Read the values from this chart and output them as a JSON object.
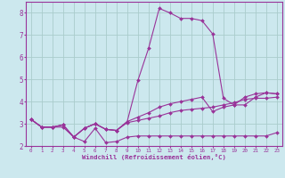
{
  "xlabel": "Windchill (Refroidissement éolien,°C)",
  "bg_color": "#cce8ee",
  "grid_color": "#aacccc",
  "line_color": "#993399",
  "xlim": [
    -0.5,
    23.5
  ],
  "ylim": [
    2.0,
    8.5
  ],
  "xticks": [
    0,
    1,
    2,
    3,
    4,
    5,
    6,
    7,
    8,
    9,
    10,
    11,
    12,
    13,
    14,
    15,
    16,
    17,
    18,
    19,
    20,
    21,
    22,
    23
  ],
  "yticks": [
    2,
    3,
    4,
    5,
    6,
    7,
    8
  ],
  "lines": [
    {
      "x": [
        0,
        1,
        2,
        3,
        4,
        5,
        6,
        7,
        8,
        9,
        10,
        11,
        12,
        13,
        14,
        15,
        16,
        17,
        18,
        19,
        20,
        21,
        22,
        23
      ],
      "y": [
        3.2,
        2.85,
        2.85,
        2.85,
        2.4,
        2.2,
        2.8,
        2.15,
        2.2,
        2.4,
        2.45,
        2.45,
        2.45,
        2.45,
        2.45,
        2.45,
        2.45,
        2.45,
        2.45,
        2.45,
        2.45,
        2.45,
        2.45,
        2.6
      ]
    },
    {
      "x": [
        0,
        1,
        2,
        3,
        4,
        5,
        6,
        7,
        8,
        9,
        10,
        11,
        12,
        13,
        14,
        15,
        16,
        17,
        18,
        19,
        20,
        21,
        22,
        23
      ],
      "y": [
        3.2,
        2.85,
        2.85,
        2.95,
        2.4,
        2.8,
        3.0,
        2.75,
        2.7,
        3.05,
        3.15,
        3.25,
        3.35,
        3.5,
        3.6,
        3.65,
        3.7,
        3.75,
        3.85,
        3.95,
        4.1,
        4.15,
        4.15,
        4.2
      ]
    },
    {
      "x": [
        0,
        1,
        2,
        3,
        4,
        5,
        6,
        7,
        8,
        9,
        10,
        11,
        12,
        13,
        14,
        15,
        16,
        17,
        18,
        19,
        20,
        21,
        22,
        23
      ],
      "y": [
        3.2,
        2.85,
        2.85,
        2.95,
        2.4,
        2.8,
        3.0,
        2.75,
        2.7,
        3.1,
        3.3,
        3.5,
        3.75,
        3.9,
        4.0,
        4.1,
        4.2,
        3.55,
        3.75,
        3.85,
        4.2,
        4.35,
        4.4,
        4.35
      ]
    },
    {
      "x": [
        0,
        1,
        2,
        3,
        4,
        5,
        6,
        7,
        8,
        9,
        10,
        11,
        12,
        13,
        14,
        15,
        16,
        17,
        18,
        19,
        20,
        21,
        22,
        23
      ],
      "y": [
        3.2,
        2.85,
        2.85,
        2.95,
        2.4,
        2.8,
        3.0,
        2.75,
        2.7,
        3.1,
        4.95,
        6.4,
        8.2,
        8.0,
        7.75,
        7.75,
        7.65,
        7.05,
        4.15,
        3.85,
        3.85,
        4.2,
        4.4,
        4.35
      ]
    }
  ]
}
